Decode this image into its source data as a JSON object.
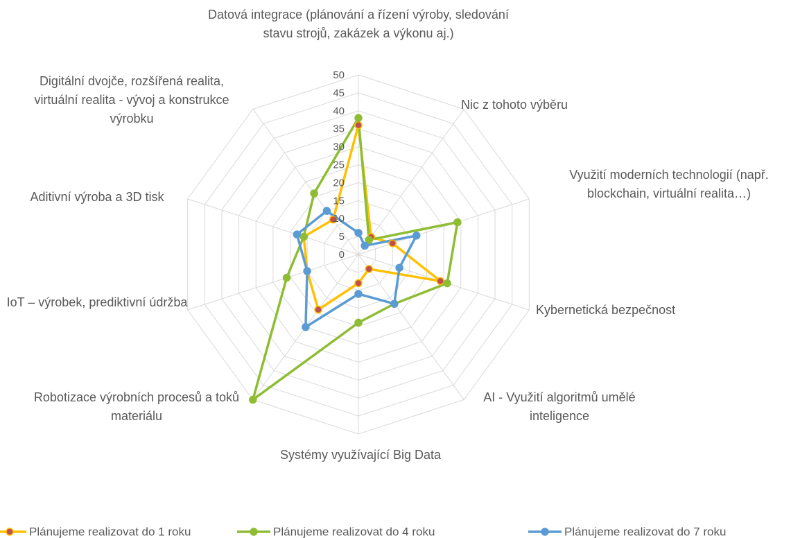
{
  "chart_data": {
    "type": "radar",
    "categories": [
      "Datová integrace (plánování a řízení výroby, sledování stavu strojů, zakázek a výkonu aj.)",
      "Nic z tohoto výběru",
      "Využití moderních technologií (např. blockchain, virtuální realita…)",
      "Kybernetická bezpečnost",
      "AI - Využití algoritmů umělé inteligence",
      "Systémy využívající Big Data",
      "Robotizace výrobních procesů a toků materiálu",
      "IoT – výrobek, prediktivní údržba",
      "Aditivní výroba a 3D tisk",
      "Digitální dvojče, rozšířená realita, virtuální realita - vývoj a konstrukce výrobku"
    ],
    "series": [
      {
        "name": "Plánujeme realizovat do 1 roku",
        "color": "#ffc000",
        "marker_color": "#c0504d",
        "values": [
          36,
          6,
          10,
          24,
          5,
          8,
          19,
          15,
          16,
          12
        ]
      },
      {
        "name": "Plánujeme realizovat do 4 roku",
        "color": "#8ebd33",
        "values": [
          38,
          5,
          29,
          26,
          17,
          19,
          50,
          21,
          16,
          21
        ]
      },
      {
        "name": "Plánujeme realizovat do 7 roku",
        "color": "#5b9bd5",
        "values": [
          6,
          3,
          17,
          12,
          17,
          11,
          25,
          15,
          18,
          15
        ]
      }
    ],
    "ylim": [
      0,
      50
    ],
    "yticks": [
      0,
      5,
      10,
      15,
      20,
      25,
      30,
      35,
      40,
      45,
      50
    ],
    "grid": true
  }
}
